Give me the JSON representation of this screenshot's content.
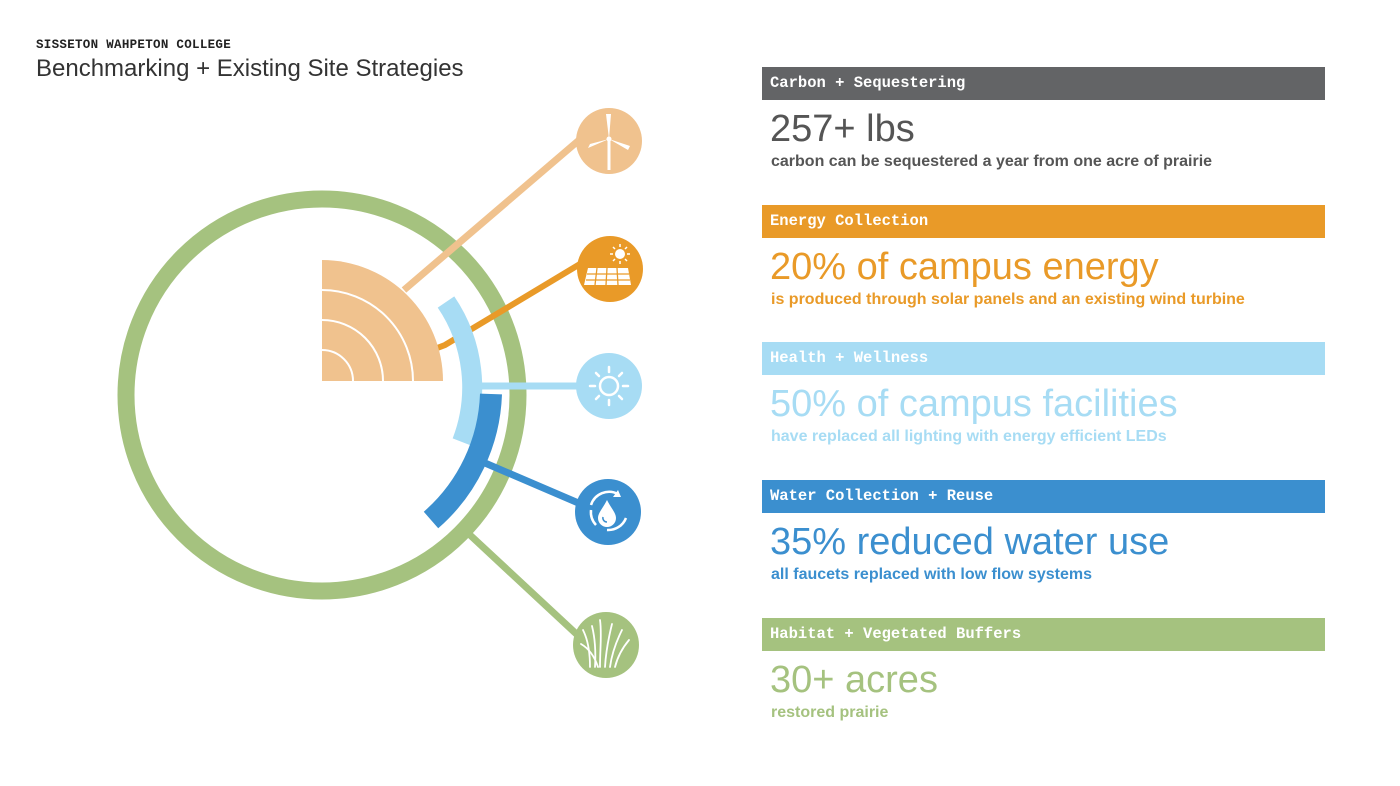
{
  "header": {
    "org": "SISSETON WAHPETON COLLEGE",
    "title": "Benchmarking + Existing Site Strategies"
  },
  "colors": {
    "carbon": "#636466",
    "energy": "#e99a28",
    "energy_light": "#f0c28e",
    "health": "#a7dcf4",
    "water": "#3b8fcf",
    "habitat": "#a5c27f"
  },
  "icons": [
    "wind-turbine-icon",
    "solar-panel-icon",
    "sun-icon",
    "water-cycle-icon",
    "grass-icon"
  ],
  "sections": [
    {
      "key": "carbon",
      "heading": "Carbon + Sequestering",
      "stat": "257+ lbs",
      "description": "carbon can be sequestered a year from one acre of prairie"
    },
    {
      "key": "energy",
      "heading": "Energy Collection",
      "stat": "20% of campus energy",
      "description": "is produced through solar panels and an existing wind turbine"
    },
    {
      "key": "health",
      "heading": "Health + Wellness",
      "stat": "50% of campus facilities",
      "description": "have replaced all lighting with energy efficient LEDs"
    },
    {
      "key": "water",
      "heading": "Water Collection + Reuse",
      "stat": "35% reduced water use",
      "description": "all faucets replaced with low flow systems"
    },
    {
      "key": "habitat",
      "heading": "Habitat + Vegetated Buffers",
      "stat": "30+ acres",
      "description": "restored prairie"
    }
  ]
}
